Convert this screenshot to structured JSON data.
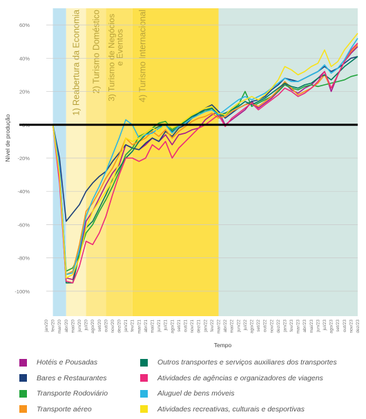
{
  "chart_data": {
    "type": "line",
    "title": "",
    "xlabel": "Tempo",
    "ylabel": "Nível de produção",
    "ylim": [
      -115,
      70
    ],
    "yticks": [
      "60%",
      "40%",
      "20%",
      "0%",
      "-20%",
      "-40%",
      "-60%",
      "-80%",
      "-100%"
    ],
    "ytick_values": [
      60,
      40,
      20,
      0,
      -20,
      -40,
      -60,
      -80,
      -100
    ],
    "grid": true,
    "legend_position": "bottom",
    "categories": [
      "jan/20",
      "fev/20",
      "mar/20",
      "abr/20",
      "mai/20",
      "jun/20",
      "jul/20",
      "ago/20",
      "set/20",
      "out/20",
      "nov/20",
      "dez/20",
      "jan/21",
      "fev/21",
      "mar/21",
      "abr/21",
      "mai/21",
      "jun/21",
      "jul/21",
      "ago/21",
      "set/21",
      "out/21",
      "nov/21",
      "dez/21",
      "jan/22",
      "fev/22",
      "mar/22",
      "abr/22",
      "mai/22",
      "jun/22",
      "jul/22",
      "ago/22",
      "set/22",
      "out/22",
      "nov/22",
      "dez/22",
      "jan/23",
      "fev/23",
      "mar/23",
      "abr/23",
      "mai/23",
      "jun/23",
      "jul/23",
      "ago/23",
      "set/23",
      "out/23",
      "nov/23",
      "dez/23"
    ],
    "phases": [
      {
        "label": "",
        "start": 1,
        "end": 3,
        "color": "#bfe3f2"
      },
      {
        "label": "1) Reabertura da Economia",
        "start": 3,
        "end": 6,
        "color": "#fdf3c2"
      },
      {
        "label": "2) Turismo Doméstico",
        "start": 6,
        "end": 9,
        "color": "#fde98c"
      },
      {
        "label": "3) Turismo de Negócios e Eventos",
        "start": 9,
        "end": 13,
        "color": "#fde46a"
      },
      {
        "label": "4) Turismo Internacional",
        "start": 13,
        "end": 26,
        "color": "#fde04a"
      },
      {
        "label": "",
        "start": 26,
        "end": 47.8,
        "color": "#d3e7e3"
      }
    ],
    "series": [
      {
        "name": "Hotéis e Pousadas",
        "color": "#a61b8c",
        "values": [
          0,
          0,
          -25,
          -92,
          -93,
          -78,
          -58,
          -52,
          -44,
          -36,
          -29,
          -24,
          -12,
          -14,
          -15,
          -12,
          -8,
          -10,
          -6,
          -12,
          -6,
          -5,
          -3,
          -2,
          3,
          6,
          8,
          0,
          3,
          6,
          9,
          14,
          10,
          13,
          16,
          20,
          25,
          21,
          19,
          22,
          24,
          28,
          32,
          20,
          30,
          38,
          43,
          47
        ]
      },
      {
        "name": "Bares e Restaurantes",
        "color": "#1c3f7a",
        "values": [
          0,
          0,
          -20,
          -58,
          -53,
          -48,
          -40,
          -35,
          -31,
          -28,
          -22,
          -17,
          -12,
          -14,
          -15,
          -11,
          -8,
          -10,
          -4,
          -7,
          -2,
          0,
          4,
          7,
          10,
          12,
          8,
          4,
          7,
          10,
          12,
          14,
          15,
          17,
          21,
          24,
          28,
          27,
          26,
          28,
          30,
          32,
          35,
          32,
          34,
          37,
          40,
          41
        ]
      },
      {
        "name": "Transporte Rodoviário",
        "color": "#22a43c",
        "values": [
          0,
          0,
          -28,
          -88,
          -86,
          -78,
          -65,
          -60,
          -52,
          -45,
          -37,
          -28,
          -18,
          -14,
          -7,
          -5,
          -2,
          1,
          2,
          -3,
          0,
          2,
          5,
          7,
          8,
          10,
          5,
          6,
          9,
          12,
          20,
          11,
          13,
          15,
          17,
          20,
          24,
          22,
          21,
          23,
          24,
          23,
          24,
          25,
          26,
          27,
          29,
          30
        ]
      },
      {
        "name": "Transporte aéreo",
        "color": "#f7941d",
        "values": [
          0,
          0,
          -30,
          -90,
          -88,
          -72,
          -52,
          -47,
          -40,
          -32,
          -26,
          -18,
          -8,
          -12,
          -10,
          -8,
          -4,
          -7,
          -3,
          -8,
          -4,
          -1,
          2,
          4,
          5,
          7,
          4,
          5,
          8,
          10,
          12,
          13,
          11,
          14,
          17,
          21,
          26,
          22,
          18,
          20,
          22,
          25,
          30,
          22,
          30,
          38,
          44,
          48
        ]
      },
      {
        "name": "Outros transportes e serviços auxiliares dos transportes",
        "color": "#007a5e",
        "values": [
          0,
          0,
          -30,
          -95,
          -95,
          -78,
          -62,
          -58,
          -50,
          -42,
          -33,
          -26,
          -20,
          -16,
          -10,
          -6,
          -3,
          -1,
          0,
          -4,
          -1,
          2,
          5,
          7,
          9,
          10,
          6,
          7,
          9,
          11,
          14,
          12,
          14,
          16,
          19,
          22,
          25,
          23,
          22,
          24,
          25,
          28,
          30,
          27,
          31,
          35,
          38,
          41
        ]
      },
      {
        "name": "Atividades de agências e organizadores de viagens",
        "color": "#ec2a7a",
        "values": [
          0,
          0,
          -35,
          -94,
          -95,
          -85,
          -70,
          -72,
          -65,
          -55,
          -42,
          -30,
          -20,
          -20,
          -22,
          -20,
          -12,
          -15,
          -10,
          -20,
          -14,
          -10,
          -6,
          -2,
          0,
          3,
          6,
          -1,
          4,
          7,
          10,
          13,
          9,
          12,
          15,
          18,
          22,
          20,
          17,
          19,
          22,
          26,
          32,
          22,
          30,
          38,
          45,
          49
        ]
      },
      {
        "name": "Aluguel de bens móveis",
        "color": "#2bb6e3",
        "values": [
          0,
          0,
          -25,
          -90,
          -89,
          -75,
          -55,
          -45,
          -37,
          -28,
          -18,
          -8,
          3,
          0,
          -8,
          -6,
          -5,
          -2,
          0,
          -5,
          -1,
          1,
          4,
          6,
          8,
          9,
          6,
          9,
          12,
          15,
          17,
          15,
          17,
          19,
          22,
          25,
          28,
          26,
          26,
          28,
          30,
          32,
          36,
          31,
          34,
          39,
          46,
          52
        ]
      },
      {
        "name": "Atividades recreativas, culturais e desportivas",
        "color": "#f9e21a",
        "values": [
          0,
          0,
          -30,
          -92,
          -90,
          -80,
          -62,
          -52,
          -46,
          -40,
          -34,
          -22,
          -8,
          -10,
          -8,
          -5,
          -2,
          -4,
          1,
          -2,
          0,
          3,
          6,
          8,
          10,
          11,
          7,
          6,
          10,
          13,
          15,
          17,
          15,
          18,
          22,
          27,
          35,
          33,
          30,
          32,
          35,
          37,
          45,
          35,
          38,
          45,
          50,
          55
        ]
      }
    ]
  }
}
